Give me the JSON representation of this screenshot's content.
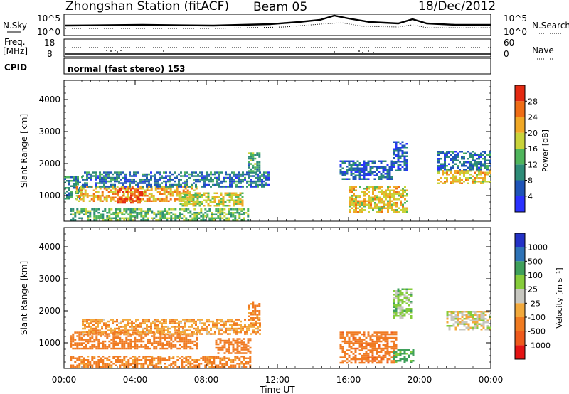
{
  "header": {
    "station_title": "Zhongshan Station (fitACF)",
    "beam": "Beam 05",
    "date": "18/Dec/2012"
  },
  "summary_panels": {
    "nsky_label": "N.Sky",
    "nsearch_label": "N.Search",
    "counts_ticks": [
      "10^5",
      "10^0"
    ],
    "freq_label": "Freq.",
    "freq_unit": "[MHz]",
    "freq_ticks": [
      "18",
      "8"
    ],
    "nave_label": "Nave",
    "nave_ticks": [
      "60",
      "0"
    ],
    "cpid_label": "CPID",
    "cpid_text": "normal (fast stereo) 153"
  },
  "colors": {
    "power": [
      "#2a32ff",
      "#1f54b8",
      "#2e8c78",
      "#4fb55c",
      "#c9d33a",
      "#f0a826",
      "#ef6d16",
      "#e42a12"
    ],
    "velocity": [
      "#2432c6",
      "#2e73b7",
      "#3fa05b",
      "#86cc3b",
      "#c7c7c0",
      "#f2a93c",
      "#f07b22",
      "#ee5a1c",
      "#e41414"
    ]
  },
  "chart_data": [
    {
      "type": "heatmap",
      "quantity": "Power",
      "ylabel": "Slant Range [km]",
      "ylim": [
        200,
        4600
      ],
      "y_ticks": [
        1000,
        2000,
        3000,
        4000
      ],
      "xlim": [
        "00:00",
        "24:00"
      ],
      "colorbar_label": "Power [dB]",
      "colorbar_ticks": [
        4,
        8,
        12,
        16,
        20,
        24,
        28
      ],
      "colorbar_range": [
        0,
        32
      ],
      "echo_regions": [
        {
          "t_start": "00:00",
          "t_end": "01:00",
          "range_km": [
            900,
            1600
          ],
          "power_dB": 10
        },
        {
          "t_start": "00:40",
          "t_end": "07:30",
          "range_km": [
            850,
            1300
          ],
          "power_dB": 22
        },
        {
          "t_start": "01:00",
          "t_end": "11:30",
          "range_km": [
            1300,
            1750
          ],
          "power_dB": 8
        },
        {
          "t_start": "03:00",
          "t_end": "04:20",
          "range_km": [
            750,
            1250
          ],
          "power_dB": 28
        },
        {
          "t_start": "06:30",
          "t_end": "10:00",
          "range_km": [
            700,
            1100
          ],
          "power_dB": 18
        },
        {
          "t_start": "00:20",
          "t_end": "10:20",
          "range_km": [
            250,
            600
          ],
          "power_dB": 14
        },
        {
          "t_start": "10:20",
          "t_end": "11:00",
          "range_km": [
            1750,
            2350
          ],
          "power_dB": 12
        },
        {
          "t_start": "15:30",
          "t_end": "18:30",
          "range_km": [
            1500,
            2100
          ],
          "power_dB": 6
        },
        {
          "t_start": "16:00",
          "t_end": "19:20",
          "range_km": [
            500,
            1300
          ],
          "power_dB": 20
        },
        {
          "t_start": "18:30",
          "t_end": "19:20",
          "range_km": [
            1800,
            2700
          ],
          "power_dB": 6
        },
        {
          "t_start": "21:00",
          "t_end": "24:00",
          "range_km": [
            1400,
            1800
          ],
          "power_dB": 20
        },
        {
          "t_start": "21:00",
          "t_end": "24:00",
          "range_km": [
            1800,
            2400
          ],
          "power_dB": 8
        }
      ]
    },
    {
      "type": "heatmap",
      "quantity": "Velocity",
      "ylabel": "Slant Range [km]",
      "ylim": [
        200,
        4600
      ],
      "y_ticks": [
        1000,
        2000,
        3000,
        4000
      ],
      "xlim": [
        "00:00",
        "24:00"
      ],
      "xlabel": "Time UT",
      "x_ticks": [
        "00:00",
        "04:00",
        "08:00",
        "12:00",
        "16:00",
        "20:00",
        "00:00"
      ],
      "colorbar_label": "Velocity [m s⁻¹]",
      "colorbar_ticks": [
        "1000",
        "500",
        "100",
        "25",
        "-25",
        "-100",
        "-500",
        "-1000"
      ],
      "echo_regions": [
        {
          "t_start": "00:20",
          "t_end": "07:30",
          "range_km": [
            800,
            1350
          ],
          "velocity_ms": -300
        },
        {
          "t_start": "00:20",
          "t_end": "10:30",
          "range_km": [
            250,
            600
          ],
          "velocity_ms": -150
        },
        {
          "t_start": "01:00",
          "t_end": "11:00",
          "range_km": [
            1300,
            1750
          ],
          "velocity_ms": -80
        },
        {
          "t_start": "08:30",
          "t_end": "10:30",
          "range_km": [
            700,
            1150
          ],
          "velocity_ms": -200
        },
        {
          "t_start": "10:20",
          "t_end": "11:00",
          "range_km": [
            1700,
            2300
          ],
          "velocity_ms": -150
        },
        {
          "t_start": "15:30",
          "t_end": "18:40",
          "range_km": [
            400,
            1350
          ],
          "velocity_ms": -350
        },
        {
          "t_start": "18:30",
          "t_end": "19:40",
          "range_km": [
            400,
            800
          ],
          "velocity_ms": 150
        },
        {
          "t_start": "18:30",
          "t_end": "19:30",
          "range_km": [
            1800,
            2700
          ],
          "velocity_ms": 50
        },
        {
          "t_start": "21:30",
          "t_end": "24:00",
          "range_km": [
            1400,
            2000
          ],
          "velocity_ms": 0
        }
      ]
    }
  ]
}
